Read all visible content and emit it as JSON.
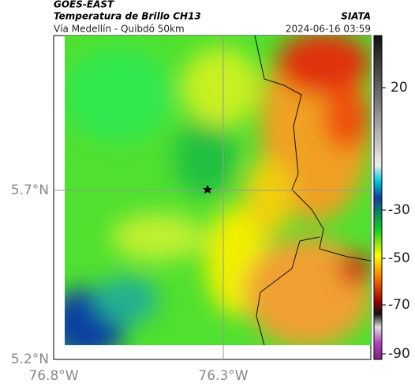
{
  "header": {
    "title": "GOES-EAST",
    "subtitle": "Temperatura de Brillo CH13",
    "route": "Vía Medellín - Quibdó 50km",
    "source": "SIATA",
    "datetime": "2024-06-16 03:59"
  },
  "map": {
    "lat_labels": [
      "5.7°N",
      "5.2°N"
    ],
    "lon_labels": [
      "76.8°W",
      "76.3°W"
    ]
  },
  "colorbar": {
    "labels": [
      "20",
      "-30",
      "-50",
      "-70",
      "-90"
    ]
  }
}
